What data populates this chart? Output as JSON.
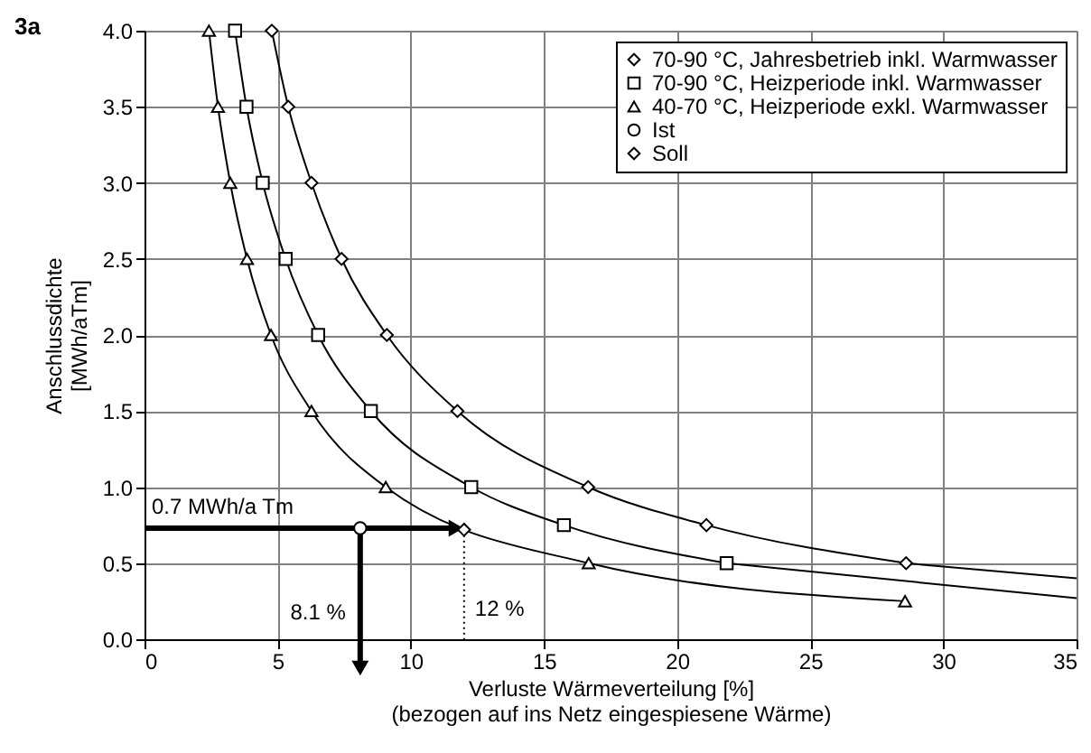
{
  "chart_data": {
    "type": "line",
    "title": "3a",
    "xlabel": "Verluste Wärmeverteilung [%]\n(bezogen auf ins Netz eingespiesene Wärme)",
    "ylabel": "Anschlussdichte\n[MWh/aTm]",
    "xlim": [
      0,
      35
    ],
    "xticks": [
      0,
      5,
      10,
      15,
      20,
      25,
      30,
      35
    ],
    "ylim": [
      0,
      4
    ],
    "yticks": [
      {
        "value": 0,
        "label": "0.0"
      },
      {
        "value": 0.5,
        "label": "0.5"
      },
      {
        "value": 1,
        "label": "1.0"
      },
      {
        "value": 1.5,
        "label": "1.5"
      },
      {
        "value": 2,
        "label": "2.0"
      },
      {
        "value": 2.5,
        "label": "2.5"
      },
      {
        "value": 3,
        "label": "3.0"
      },
      {
        "value": 3.5,
        "label": "3.5"
      },
      {
        "value": 4,
        "label": "4.0"
      }
    ],
    "grid": true,
    "legend": "top right",
    "line_style": "solid",
    "series": [
      {
        "name": "70-90 °C, Jahresbetrieb inkl. Warmwasser",
        "type": "line",
        "marker": "diamond",
        "color": "#000000",
        "x": [
          4.78,
          5.4,
          6.27,
          7.4,
          9.1,
          11.75,
          16.66,
          21.1,
          28.6
        ],
        "values": [
          4.0,
          3.5,
          3.0,
          2.5,
          2.0,
          1.5,
          1.0,
          0.75,
          0.5
        ]
      },
      {
        "name": "70-90 °C, Heizperiode inkl. Warmwasser",
        "type": "line",
        "marker": "square",
        "color": "#000000",
        "x": [
          3.4,
          3.83,
          4.44,
          5.3,
          6.52,
          8.5,
          12.27,
          15.75,
          21.86
        ],
        "values": [
          4.0,
          3.5,
          3.0,
          2.5,
          2.0,
          1.5,
          1.0,
          0.75,
          0.5
        ]
      },
      {
        "name": "40-70 °C, Heizperiode exkl. Warmwasser",
        "type": "line",
        "marker": "triangle",
        "color": "#000000",
        "x": [
          2.42,
          2.76,
          3.22,
          3.85,
          4.75,
          6.27,
          9.06,
          16.68,
          28.56
        ],
        "values": [
          4.0,
          3.5,
          3.0,
          2.5,
          2.0,
          1.5,
          1.0,
          0.5,
          0.25
        ]
      },
      {
        "type": "line",
        "marker": "none",
        "color": "#000000",
        "x": [
          28.6,
          35
        ],
        "values": [
          0.5,
          0.4
        ]
      },
      {
        "type": "line",
        "marker": "none",
        "color": "#000000",
        "x": [
          21.86,
          35
        ],
        "values": [
          0.5,
          0.27
        ]
      },
      {
        "name": "Ist",
        "type": "scatter",
        "marker": "circle",
        "color": "#000000",
        "x": [
          8.1
        ],
        "values": [
          0.73
        ]
      },
      {
        "name": "Soll",
        "type": "scatter",
        "marker": "diamond",
        "color": "#000000",
        "x": [
          12.0
        ],
        "values": [
          0.72
        ]
      }
    ],
    "annotations": [
      {
        "text": "0.7 MWh/a Tm",
        "x": 11.7,
        "y": 0.73
      },
      "8.1 %",
      {
        "text": "12 %",
        "x": 12.0,
        "y": 0.72
      }
    ]
  }
}
